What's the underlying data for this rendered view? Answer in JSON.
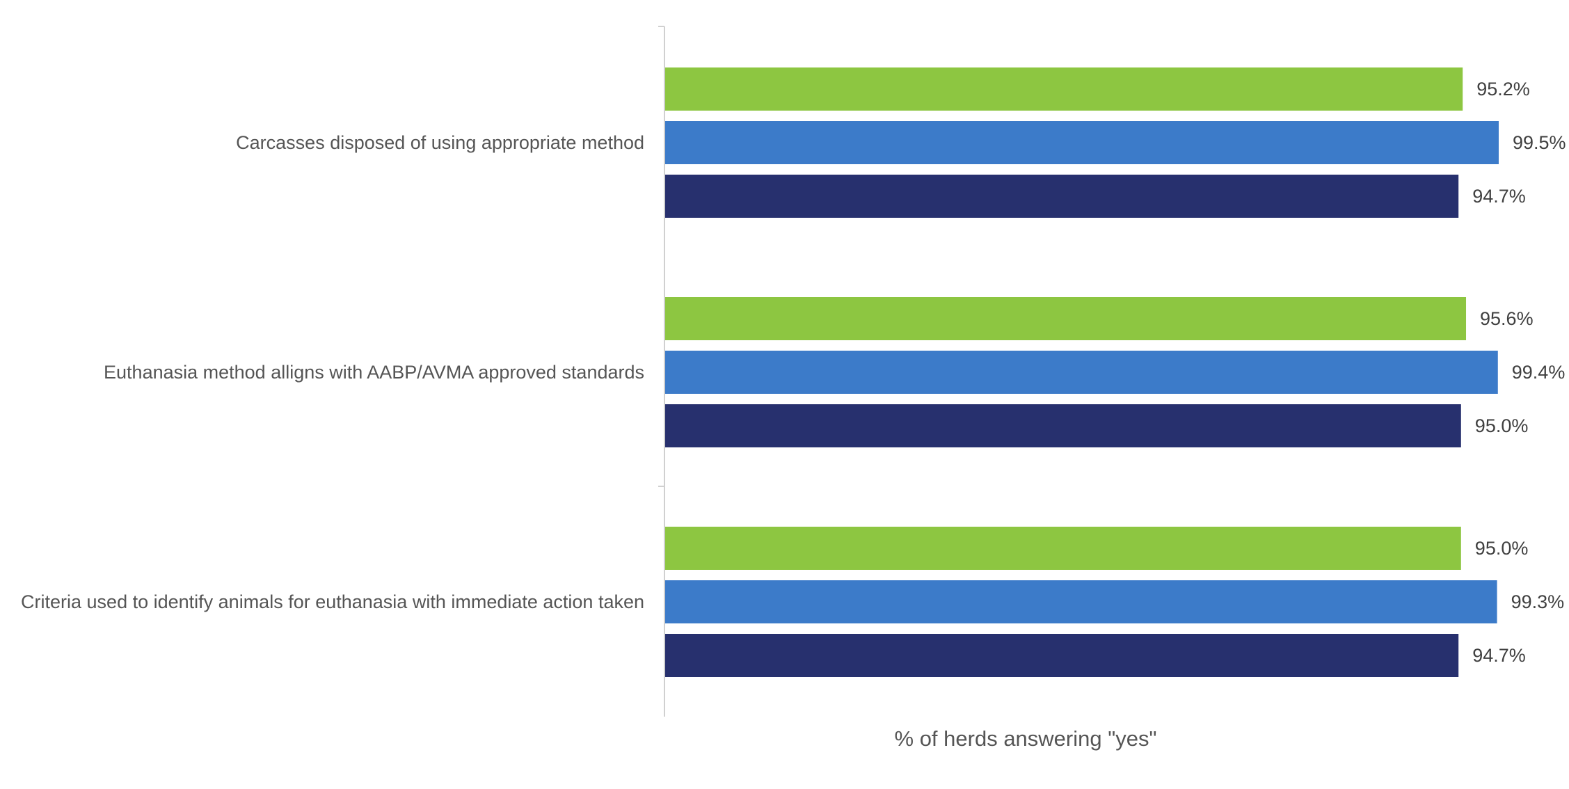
{
  "chart_data": {
    "type": "bar",
    "orientation": "horizontal",
    "title": "",
    "xlabel": "% of herds answering \"yes\"",
    "ylabel": "",
    "xlim": [
      0,
      100
    ],
    "grid": false,
    "legend": "none",
    "categories": [
      "Carcasses disposed of using appropriate method",
      "Euthanasia method alligns with AABP/AVMA approved standards",
      "Criteria used to identify animals for euthanasia with immediate action taken"
    ],
    "series": [
      {
        "name": "Series 1",
        "color": "#8DC641",
        "values": [
          95.2,
          95.6,
          95.0
        ],
        "labels": [
          "95.2%",
          "95.6%",
          "95.0%"
        ]
      },
      {
        "name": "Series 2",
        "color": "#3C7BC9",
        "values": [
          99.5,
          99.4,
          99.3
        ],
        "labels": [
          "99.5%",
          "99.4%",
          "99.3%"
        ]
      },
      {
        "name": "Series 3",
        "color": "#27306E",
        "values": [
          94.7,
          95.0,
          94.7
        ],
        "labels": [
          "94.7%",
          "95.0%",
          "94.7%"
        ]
      }
    ]
  }
}
